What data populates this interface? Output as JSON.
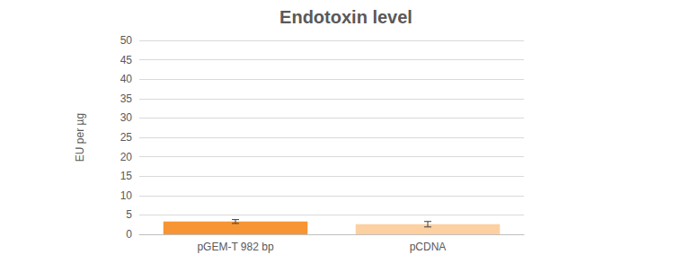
{
  "chart_data": {
    "type": "bar",
    "title": "Endotoxin level",
    "y_label": "EU per µg",
    "categories": [
      "pGEM-T 982 bp",
      "pCDNA"
    ],
    "values": [
      3.3,
      2.6
    ],
    "errors": [
      0.5,
      0.7
    ],
    "colors": [
      "#f79433",
      "#fcd0a1"
    ],
    "ylim": [
      0,
      50
    ],
    "yticks": [
      0,
      5,
      10,
      15,
      20,
      25,
      30,
      35,
      40,
      45,
      50
    ],
    "grid": true
  }
}
